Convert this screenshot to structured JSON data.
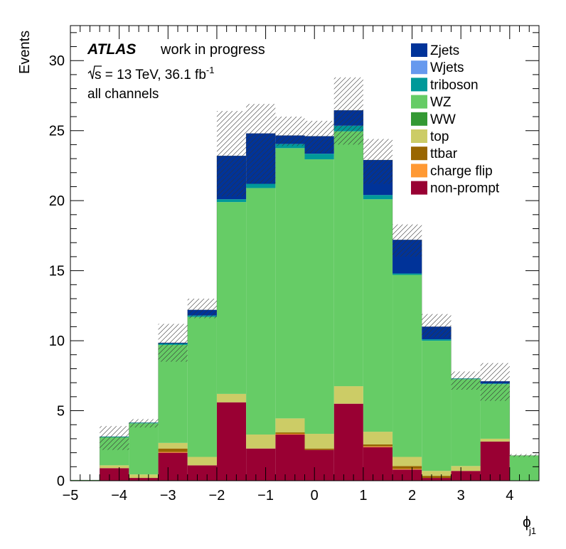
{
  "chart_data": {
    "type": "bar",
    "stacked": true,
    "xlabel": "ϕ",
    "xlabel_sub": "j1",
    "ylabel": "Events",
    "xlim": [
      -5,
      4.6
    ],
    "ylim": [
      0,
      32.5
    ],
    "x_ticks": [
      "−5",
      "−4",
      "−3",
      "−2",
      "−1",
      "0",
      "1",
      "2",
      "3",
      "4"
    ],
    "y_ticks": [
      "0",
      "5",
      "10",
      "15",
      "20",
      "25",
      "30"
    ],
    "grid": false,
    "legend_position": "top-right",
    "annotations": {
      "experiment": "ATLAS",
      "status": "work in progress",
      "sqrt_s": "s",
      "energy_lumi": " = 13 TeV, 36.1 fb",
      "lumi_exp": "-1",
      "channel": "all channels"
    },
    "bin_edges": [
      -5.0,
      -4.4,
      -3.8,
      -3.2,
      -2.6,
      -2.0,
      -1.4,
      -0.8,
      -0.2,
      0.4,
      1.0,
      1.6,
      2.2,
      2.8,
      3.4,
      4.0,
      4.6
    ],
    "series": [
      {
        "name": "non-prompt",
        "color": "#990033",
        "values": [
          0.0,
          0.9,
          0.2,
          2.0,
          1.1,
          5.6,
          2.3,
          3.3,
          2.2,
          5.5,
          2.4,
          0.8,
          0.2,
          0.7,
          2.8,
          0.0
        ]
      },
      {
        "name": "charge flip",
        "color": "#ff9933",
        "values": [
          0.0,
          0.0,
          0.0,
          0.05,
          0.0,
          0.0,
          0.0,
          0.05,
          0.0,
          0.0,
          0.05,
          0.05,
          0.0,
          0.0,
          0.0,
          0.0
        ]
      },
      {
        "name": "ttbar",
        "color": "#996600",
        "values": [
          0.0,
          0.0,
          0.0,
          0.25,
          0.0,
          0.0,
          0.0,
          0.1,
          0.1,
          0.0,
          0.15,
          0.2,
          0.15,
          0.0,
          0.0,
          0.0
        ]
      },
      {
        "name": "top",
        "color": "#cccc66",
        "values": [
          0.0,
          0.2,
          0.25,
          0.4,
          0.6,
          0.6,
          1.0,
          1.0,
          1.05,
          1.25,
          0.9,
          0.65,
          0.35,
          0.35,
          0.2,
          0.0
        ]
      },
      {
        "name": "WW",
        "color": "#339933",
        "values": [
          0.0,
          0.0,
          0.0,
          0.0,
          0.0,
          0.0,
          0.0,
          0.0,
          0.0,
          0.0,
          0.0,
          0.0,
          0.0,
          0.0,
          0.0,
          0.0
        ]
      },
      {
        "name": "WZ",
        "color": "#66cc66",
        "values": [
          0.05,
          2.0,
          3.65,
          7.0,
          10.0,
          13.7,
          17.6,
          19.3,
          19.6,
          18.2,
          16.6,
          13.0,
          9.3,
          6.2,
          3.9,
          1.8
        ]
      },
      {
        "name": "triboson",
        "color": "#009999",
        "values": [
          0.0,
          0.05,
          0.05,
          0.1,
          0.1,
          0.2,
          0.3,
          0.3,
          0.4,
          0.4,
          0.3,
          0.1,
          0.1,
          0.05,
          0.05,
          0.0
        ]
      },
      {
        "name": "Wjets",
        "color": "#6699ee",
        "values": [
          0.0,
          0.0,
          0.0,
          0.0,
          0.0,
          0.0,
          0.0,
          0.0,
          0.0,
          0.0,
          0.0,
          0.0,
          0.0,
          0.0,
          0.0,
          0.0
        ]
      },
      {
        "name": "Zjets",
        "color": "#003399",
        "values": [
          0.0,
          0.0,
          0.0,
          0.05,
          0.4,
          3.1,
          3.6,
          0.6,
          1.25,
          1.1,
          2.5,
          2.4,
          0.9,
          0.0,
          0.15,
          0.0
        ]
      }
    ],
    "uncertainty_band": {
      "style": "hatched",
      "low": [
        0.0,
        2.2,
        3.8,
        8.5,
        11.6,
        20.3,
        21.2,
        23.9,
        23.4,
        24.0,
        21.2,
        16.0,
        10.2,
        6.5,
        5.7,
        1.7
      ],
      "high": [
        0.0,
        3.9,
        4.4,
        11.2,
        13.0,
        26.4,
        26.9,
        26.0,
        25.7,
        28.8,
        24.4,
        18.3,
        11.9,
        7.8,
        8.4,
        1.9
      ]
    }
  }
}
